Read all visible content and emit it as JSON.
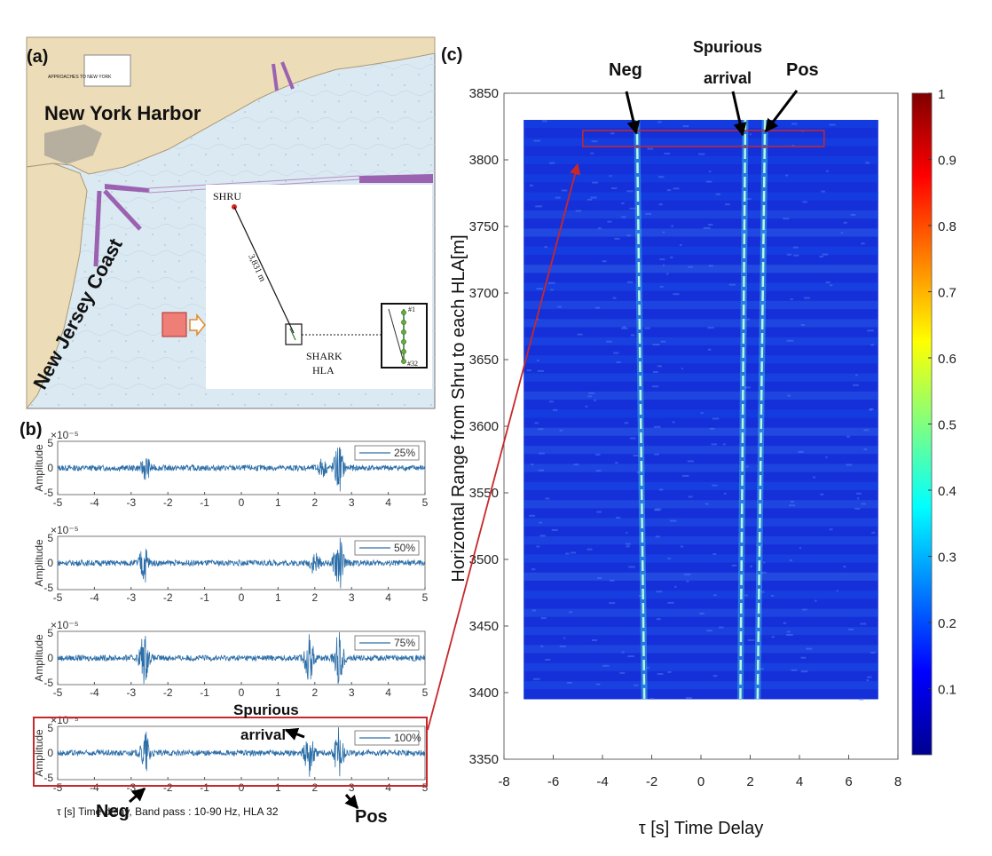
{
  "panel_a": {
    "label": "(a)",
    "places": {
      "harbor": "New York Harbor",
      "coast": "New Jersey Coast"
    },
    "chart_title": "APPROACHES TO NEW YORK",
    "inset": {
      "shru": "SHRU",
      "distance": "3,831 m",
      "shark_line1": "SHARK",
      "shark_line2": "HLA",
      "hla_first": "#1",
      "hla_last": "#32"
    },
    "colors": {
      "land": "#ecdcb8",
      "water": "#dbe9f2",
      "channel": "#9a62b0"
    }
  },
  "panel_b": {
    "label": "(b)",
    "ylabel": "Amplitude",
    "exponent": "×10⁻⁵",
    "xlabel": "τ [s] Time delay, Band pass : 10-90 Hz, HLA 32",
    "neg_label": "Neg",
    "pos_label": "Pos",
    "spurious_line1": "Spurious",
    "spurious_line2": "arrival"
  },
  "panel_c": {
    "label": "(c)",
    "neg_label": "Neg",
    "spurious_line1": "Spurious",
    "spurious_line2": "arrival",
    "pos_label": "Pos"
  },
  "chart_data": [
    {
      "type": "line",
      "title": "",
      "legend": "25%",
      "xlabel": "",
      "ylabel": "Amplitude",
      "xlim": [
        -5,
        5
      ],
      "ylim": [
        -5,
        5
      ],
      "yscale_exponent": -5,
      "x_ticks": [
        -5,
        -4,
        -3,
        -2,
        -1,
        0,
        1,
        2,
        3,
        4,
        5
      ],
      "y_ticks": [
        -5,
        0,
        5
      ],
      "peaks": [
        {
          "x": -2.6,
          "amp": 2.0
        },
        {
          "x": 2.2,
          "amp": 1.5
        },
        {
          "x": 2.65,
          "amp": 4.5
        }
      ]
    },
    {
      "type": "line",
      "title": "",
      "legend": "50%",
      "xlabel": "",
      "ylabel": "Amplitude",
      "xlim": [
        -5,
        5
      ],
      "ylim": [
        -5,
        5
      ],
      "yscale_exponent": -5,
      "x_ticks": [
        -5,
        -4,
        -3,
        -2,
        -1,
        0,
        1,
        2,
        3,
        4,
        5
      ],
      "y_ticks": [
        -5,
        0,
        5
      ],
      "peaks": [
        {
          "x": -2.65,
          "amp": 3.5
        },
        {
          "x": 2.0,
          "amp": 2.0
        },
        {
          "x": 2.65,
          "amp": 5.5
        }
      ]
    },
    {
      "type": "line",
      "title": "",
      "legend": "75%",
      "xlabel": "",
      "ylabel": "Amplitude",
      "xlim": [
        -5,
        5
      ],
      "ylim": [
        -5,
        5
      ],
      "yscale_exponent": -5,
      "x_ticks": [
        -5,
        -4,
        -3,
        -2,
        -1,
        0,
        1,
        2,
        3,
        4,
        5
      ],
      "y_ticks": [
        -5,
        0,
        5
      ],
      "peaks": [
        {
          "x": -2.65,
          "amp": 4.5
        },
        {
          "x": 1.85,
          "amp": 4.0
        },
        {
          "x": 2.65,
          "amp": 5.0
        }
      ]
    },
    {
      "type": "line",
      "title": "",
      "legend": "100%",
      "xlabel": "τ [s] Time delay, Band pass : 10-90 Hz, HLA 32",
      "ylabel": "Amplitude",
      "xlim": [
        -5,
        5
      ],
      "ylim": [
        -5,
        5
      ],
      "yscale_exponent": -5,
      "x_ticks": [
        -5,
        -4,
        -3,
        -2,
        -1,
        0,
        1,
        2,
        3,
        4,
        5
      ],
      "y_ticks": [
        -5,
        0,
        5
      ],
      "peaks": [
        {
          "x": -2.6,
          "amp": 4.0
        },
        {
          "x": 1.85,
          "amp": 4.5
        },
        {
          "x": 2.65,
          "amp": 5.0
        }
      ]
    },
    {
      "type": "heatmap",
      "title": "",
      "xlabel": "τ [s] Time Delay",
      "ylabel": "Horizontal Range from Shru to each HLA[m]",
      "xlim": [
        -8,
        8
      ],
      "ylim": [
        3350,
        3850
      ],
      "x_ticks": [
        -8,
        -6,
        -4,
        -2,
        0,
        2,
        4,
        6,
        8
      ],
      "y_ticks": [
        3350,
        3400,
        3450,
        3500,
        3550,
        3600,
        3650,
        3700,
        3750,
        3800,
        3850
      ],
      "data_extent": {
        "x": [
          -7.2,
          7.2
        ],
        "y": [
          3395,
          3830
        ]
      },
      "rows": 32,
      "arrivals": [
        {
          "name": "Neg",
          "tau_at_top": -2.6,
          "tau_at_bottom": -2.3
        },
        {
          "name": "Spurious arrival",
          "tau_at_top": 1.8,
          "tau_at_bottom": 1.6
        },
        {
          "name": "Pos",
          "tau_at_top": 2.6,
          "tau_at_bottom": 2.3
        }
      ],
      "highlight_box": {
        "x": [
          -4.8,
          5.0
        ],
        "y": [
          3810,
          3822
        ]
      },
      "colorbar": {
        "min": 0,
        "max": 1,
        "ticks": [
          0.1,
          0.2,
          0.3,
          0.4,
          0.5,
          0.6,
          0.7,
          0.8,
          0.9,
          1
        ]
      }
    }
  ]
}
